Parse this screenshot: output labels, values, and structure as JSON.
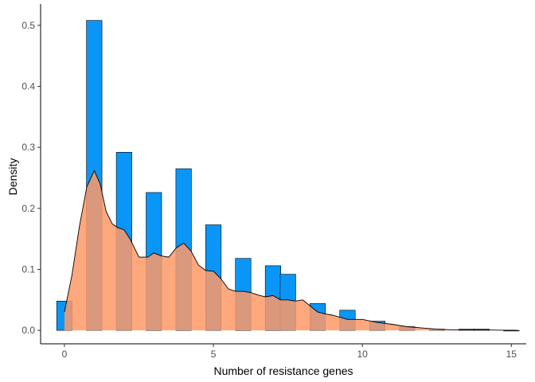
{
  "chart_data": {
    "type": "histogram+density",
    "xlabel": "Number of resistance genes",
    "ylabel": "Density",
    "xlim": [
      -0.8,
      15.5
    ],
    "ylim": [
      -0.022,
      0.535
    ],
    "x_ticks": [
      0,
      5,
      10,
      15
    ],
    "y_ticks": [
      0.0,
      0.1,
      0.2,
      0.3,
      0.4,
      0.5
    ],
    "x_tick_labels": [
      "0",
      "5",
      "10",
      "15"
    ],
    "y_tick_labels": [
      "0.0",
      "0.1",
      "0.2",
      "0.3",
      "0.4",
      "0.5"
    ],
    "grid": false,
    "legend": "none",
    "histogram": {
      "bin_width": 0.52,
      "fill": "#0996f7",
      "bins": [
        {
          "x": 0.0,
          "y": 0.048
        },
        {
          "x": 1.0,
          "y": 0.508
        },
        {
          "x": 2.0,
          "y": 0.292
        },
        {
          "x": 3.0,
          "y": 0.226
        },
        {
          "x": 4.0,
          "y": 0.265
        },
        {
          "x": 5.0,
          "y": 0.173
        },
        {
          "x": 6.0,
          "y": 0.118
        },
        {
          "x": 7.0,
          "y": 0.106
        },
        {
          "x": 7.5,
          "y": 0.092
        },
        {
          "x": 8.5,
          "y": 0.044
        },
        {
          "x": 9.5,
          "y": 0.033
        },
        {
          "x": 10.5,
          "y": 0.015
        },
        {
          "x": 11.5,
          "y": 0.006
        },
        {
          "x": 12.5,
          "y": 0.002
        },
        {
          "x": 13.5,
          "y": 0.002
        },
        {
          "x": 14.0,
          "y": 0.002
        },
        {
          "x": 15.0,
          "y": 0.0
        }
      ]
    },
    "density": {
      "fill": "#ff9966",
      "fill_opacity": 0.85,
      "x": [
        0.0,
        0.25,
        0.5,
        0.75,
        1.0,
        1.2,
        1.4,
        1.6,
        1.8,
        2.0,
        2.2,
        2.5,
        2.8,
        3.0,
        3.25,
        3.5,
        3.75,
        4.0,
        4.25,
        4.5,
        4.75,
        5.0,
        5.25,
        5.5,
        5.75,
        6.0,
        6.25,
        6.5,
        6.75,
        7.0,
        7.25,
        7.5,
        7.75,
        8.0,
        8.25,
        8.5,
        8.75,
        9.0,
        9.5,
        10.0,
        10.5,
        11.0,
        11.5,
        12.0,
        12.5,
        13.0,
        13.5,
        14.0,
        14.5,
        15.0,
        15.2
      ],
      "y": [
        0.03,
        0.09,
        0.17,
        0.235,
        0.262,
        0.24,
        0.195,
        0.175,
        0.168,
        0.165,
        0.15,
        0.12,
        0.12,
        0.127,
        0.122,
        0.12,
        0.135,
        0.143,
        0.13,
        0.107,
        0.098,
        0.097,
        0.085,
        0.068,
        0.064,
        0.064,
        0.062,
        0.058,
        0.055,
        0.057,
        0.05,
        0.05,
        0.048,
        0.05,
        0.04,
        0.03,
        0.027,
        0.025,
        0.018,
        0.018,
        0.013,
        0.01,
        0.006,
        0.004,
        0.002,
        0.001,
        0.001,
        0.001,
        0.0005,
        0.0002,
        0.0
      ]
    }
  }
}
